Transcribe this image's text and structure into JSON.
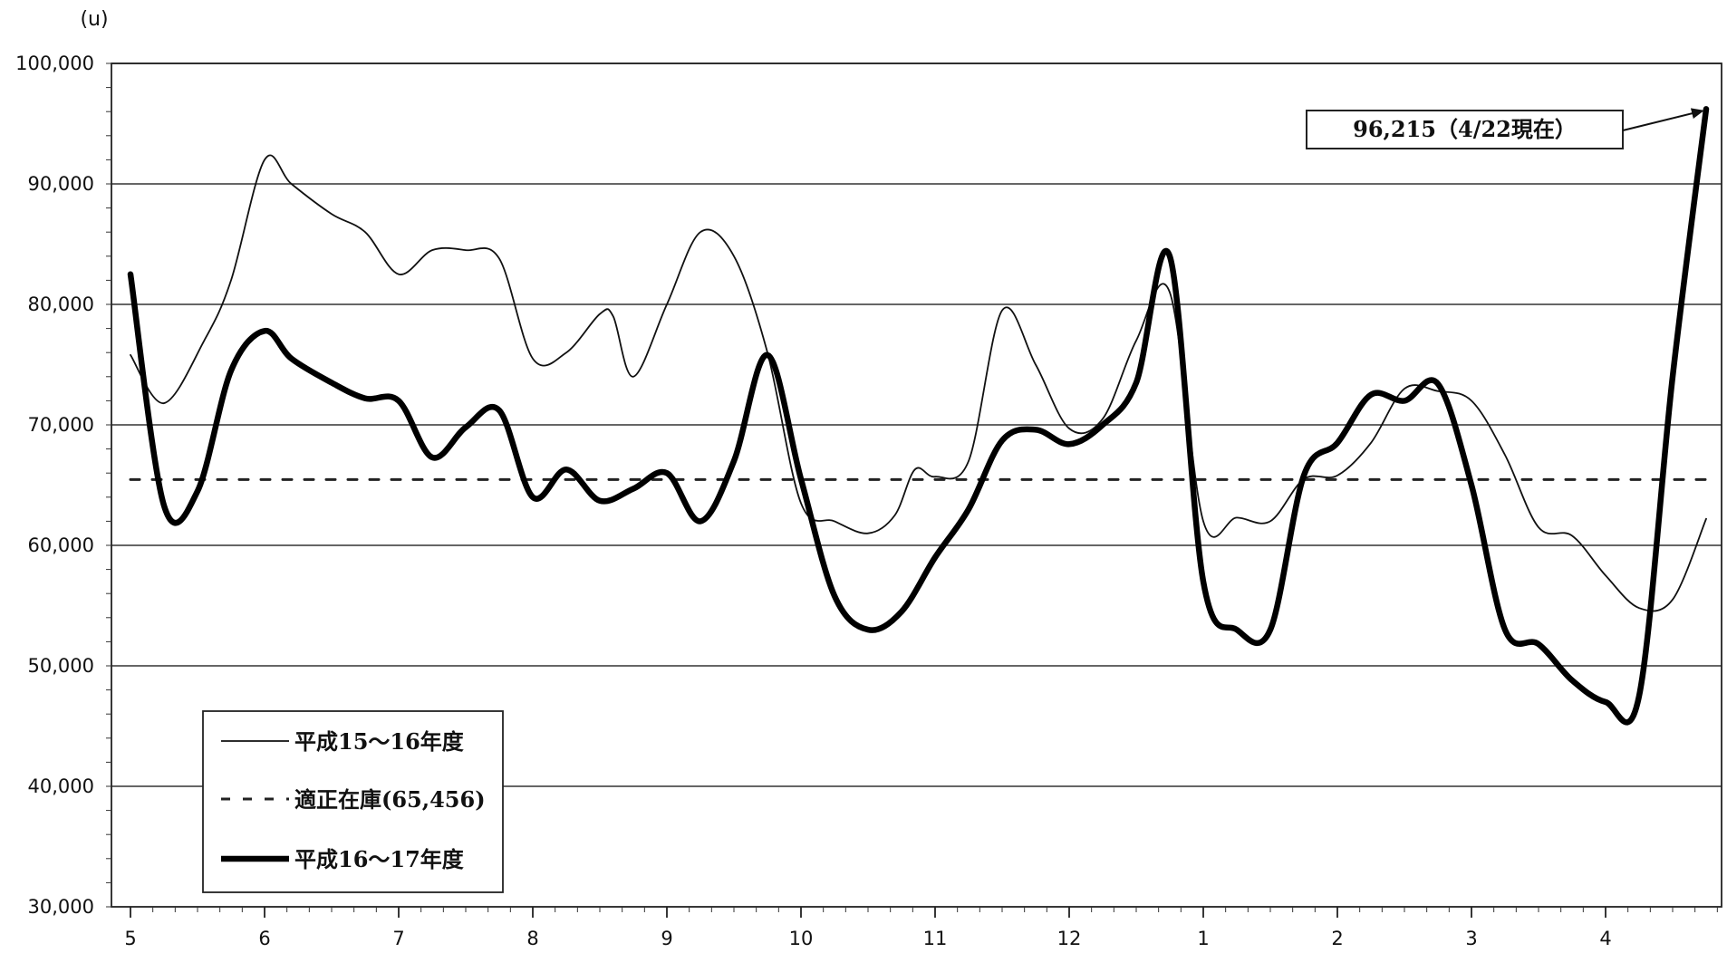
{
  "chart_data": {
    "type": "line",
    "y_unit": "(u)",
    "ylim": [
      30000,
      100000
    ],
    "yticks": [
      "100,000",
      "90,000",
      "80,000",
      "70,000",
      "60,000",
      "50,000",
      "40,000",
      "30,000"
    ],
    "ytick_values": [
      100000,
      90000,
      80000,
      70000,
      60000,
      50000,
      40000,
      30000
    ],
    "categories": [
      "5",
      "6",
      "7",
      "8",
      "9",
      "10",
      "11",
      "12",
      "1",
      "2",
      "3",
      "4"
    ],
    "x_minor_ticks_per_month": 6,
    "grid": "horizontal",
    "legend_position": "bottom-left",
    "series": [
      {
        "name": "平成15～16年度",
        "style": "thin-solid",
        "color": "#111111",
        "x": [
          0.0,
          0.25,
          0.55,
          0.75,
          1.0,
          1.2,
          1.5,
          1.75,
          2.0,
          2.25,
          2.5,
          2.75,
          3.0,
          3.25,
          3.5,
          3.6,
          3.75,
          4.0,
          4.25,
          4.5,
          4.75,
          5.0,
          5.25,
          5.5,
          5.7,
          5.85,
          6.0,
          6.25,
          6.5,
          6.75,
          7.0,
          7.25,
          7.5,
          7.75,
          8.0,
          8.25,
          8.5,
          8.75,
          9.0,
          9.25,
          9.5,
          9.75,
          10.0,
          10.25,
          10.5,
          10.75,
          11.0,
          11.25,
          11.5,
          11.75
        ],
        "y": [
          75800,
          71800,
          77000,
          82000,
          92000,
          90000,
          87500,
          86000,
          82500,
          84500,
          84500,
          83800,
          75500,
          76000,
          79200,
          79000,
          74000,
          80000,
          86000,
          84000,
          76000,
          63500,
          62000,
          61000,
          62500,
          66300,
          65700,
          67000,
          79500,
          75000,
          69700,
          70500,
          77000,
          81000,
          62000,
          62300,
          62000,
          65500,
          65800,
          68500,
          73000,
          72800,
          72000,
          67500,
          61500,
          60800,
          57500,
          54800,
          55500,
          62200
        ]
      },
      {
        "name": "適正在庫(65,456)",
        "style": "dashed",
        "color": "#222222",
        "x": [
          0.0,
          11.75
        ],
        "y": [
          65456,
          65456
        ]
      },
      {
        "name": "平成16～17年度",
        "style": "thick-solid",
        "color": "#000000",
        "x": [
          0.0,
          0.25,
          0.5,
          0.75,
          1.0,
          1.2,
          1.5,
          1.75,
          2.0,
          2.25,
          2.5,
          2.75,
          3.0,
          3.25,
          3.5,
          3.75,
          4.0,
          4.25,
          4.5,
          4.75,
          5.0,
          5.25,
          5.5,
          5.75,
          6.0,
          6.25,
          6.5,
          6.75,
          7.0,
          7.25,
          7.5,
          7.75,
          8.0,
          8.25,
          8.5,
          8.75,
          9.0,
          9.25,
          9.5,
          9.75,
          10.0,
          10.25,
          10.5,
          10.75,
          11.0,
          11.25,
          11.5,
          11.75
        ],
        "y": [
          82500,
          63300,
          64500,
          74500,
          77800,
          75500,
          73500,
          72200,
          72000,
          67300,
          69800,
          71200,
          64000,
          66300,
          63700,
          64700,
          66000,
          62000,
          67000,
          75800,
          65500,
          55800,
          53000,
          54500,
          59000,
          63000,
          68700,
          69600,
          68400,
          70000,
          73500,
          84000,
          57000,
          53000,
          53000,
          65800,
          68500,
          72500,
          72000,
          73400,
          65000,
          53000,
          51800,
          48800,
          47000,
          47500,
          74000,
          96215
        ]
      }
    ],
    "annotations": [
      {
        "text": "96,215（4/22現在）",
        "points_to_x": 11.75,
        "points_to_y": 96215
      }
    ]
  }
}
